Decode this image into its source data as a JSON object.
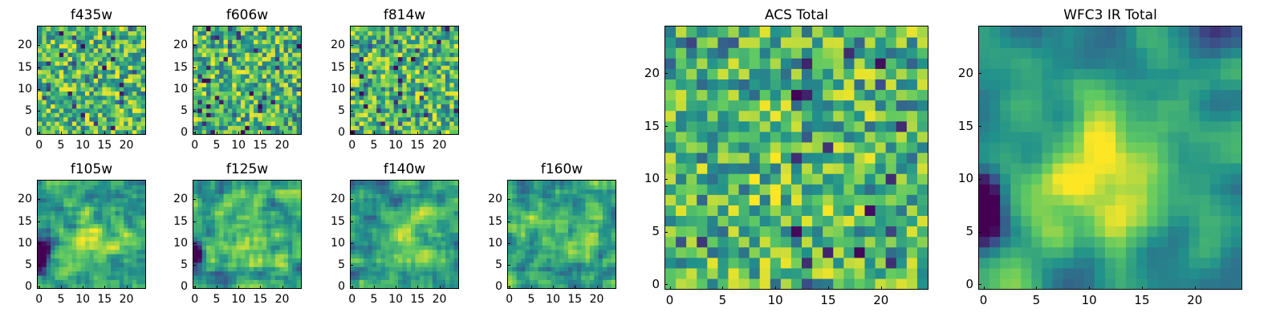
{
  "chart_data": [
    {
      "type": "heatmap",
      "title": "f435w",
      "xticks": [
        "0",
        "5",
        "10",
        "15",
        "20"
      ],
      "yticks": [
        "0",
        "5",
        "10",
        "15",
        "20"
      ],
      "xlim": [
        -0.5,
        24.5
      ],
      "ylim": [
        -0.5,
        24.5
      ],
      "grid_size": 25,
      "value_range": [
        0,
        1
      ],
      "seed": 435,
      "smooth": 0,
      "hotspot": 0.0,
      "darkzone": "none"
    },
    {
      "type": "heatmap",
      "title": "f606w",
      "xticks": [
        "0",
        "5",
        "10",
        "15",
        "20"
      ],
      "yticks": [
        "0",
        "5",
        "10",
        "15",
        "20"
      ],
      "xlim": [
        -0.5,
        24.5
      ],
      "ylim": [
        -0.5,
        24.5
      ],
      "grid_size": 25,
      "value_range": [
        0,
        1
      ],
      "seed": 606,
      "smooth": 0,
      "hotspot": 0.0,
      "darkzone": "none"
    },
    {
      "type": "heatmap",
      "title": "f814w",
      "xticks": [
        "0",
        "5",
        "10",
        "15",
        "20"
      ],
      "yticks": [
        "0",
        "5",
        "10",
        "15",
        "20"
      ],
      "xlim": [
        -0.5,
        24.5
      ],
      "ylim": [
        -0.5,
        24.5
      ],
      "grid_size": 25,
      "value_range": [
        0,
        1
      ],
      "seed": 814,
      "smooth": 0,
      "hotspot": 0.0,
      "darkzone": "none"
    },
    {
      "type": "heatmap",
      "title": "f105w",
      "xticks": [
        "0",
        "5",
        "10",
        "15",
        "20"
      ],
      "yticks": [
        "0",
        "5",
        "10",
        "15",
        "20"
      ],
      "xlim": [
        -0.5,
        24.5
      ],
      "ylim": [
        -0.5,
        24.5
      ],
      "grid_size": 25,
      "value_range": [
        0,
        1
      ],
      "seed": 105,
      "smooth": 1,
      "hotspot": 0.35,
      "darkzone": "left"
    },
    {
      "type": "heatmap",
      "title": "f125w",
      "xticks": [
        "0",
        "5",
        "10",
        "15",
        "20"
      ],
      "yticks": [
        "0",
        "5",
        "10",
        "15",
        "20"
      ],
      "xlim": [
        -0.5,
        24.5
      ],
      "ylim": [
        -0.5,
        24.5
      ],
      "grid_size": 25,
      "value_range": [
        0,
        1
      ],
      "seed": 125,
      "smooth": 1,
      "hotspot": 0.3,
      "darkzone": "left"
    },
    {
      "type": "heatmap",
      "title": "f140w",
      "xticks": [
        "0",
        "5",
        "10",
        "15",
        "20"
      ],
      "yticks": [
        "0",
        "5",
        "10",
        "15",
        "20"
      ],
      "xlim": [
        -0.5,
        24.5
      ],
      "ylim": [
        -0.5,
        24.5
      ],
      "grid_size": 25,
      "value_range": [
        0,
        1
      ],
      "seed": 140,
      "smooth": 1,
      "hotspot": 0.3,
      "darkzone": "none"
    },
    {
      "type": "heatmap",
      "title": "f160w",
      "xticks": [
        "0",
        "5",
        "10",
        "15",
        "20"
      ],
      "yticks": [
        "0",
        "5",
        "10",
        "15",
        "20"
      ],
      "xlim": [
        -0.5,
        24.5
      ],
      "ylim": [
        -0.5,
        24.5
      ],
      "grid_size": 25,
      "value_range": [
        0,
        1
      ],
      "seed": 160,
      "smooth": 1,
      "hotspot": 0.25,
      "darkzone": "none"
    },
    {
      "type": "heatmap",
      "title": "ACS Total",
      "xticks": [
        "0",
        "5",
        "10",
        "15",
        "20"
      ],
      "yticks": [
        "0",
        "5",
        "10",
        "15",
        "20"
      ],
      "xlim": [
        -0.5,
        24.5
      ],
      "ylim": [
        -0.5,
        24.5
      ],
      "grid_size": 25,
      "value_range": [
        0,
        1
      ],
      "seed": 999,
      "smooth": 0,
      "hotspot": 0.1,
      "darkzone": "none"
    },
    {
      "type": "heatmap",
      "title": "WFC3 IR Total",
      "xticks": [
        "0",
        "5",
        "10",
        "15",
        "20"
      ],
      "yticks": [
        "0",
        "5",
        "10",
        "15",
        "20"
      ],
      "xlim": [
        -0.5,
        24.5
      ],
      "ylim": [
        -0.5,
        24.5
      ],
      "grid_size": 25,
      "value_range": [
        0,
        1
      ],
      "seed": 3,
      "smooth": 2,
      "hotspot": 0.55,
      "darkzone": "left"
    }
  ],
  "colormap": [
    "#440154",
    "#3b528b",
    "#21918c",
    "#5ec962",
    "#fde725"
  ]
}
